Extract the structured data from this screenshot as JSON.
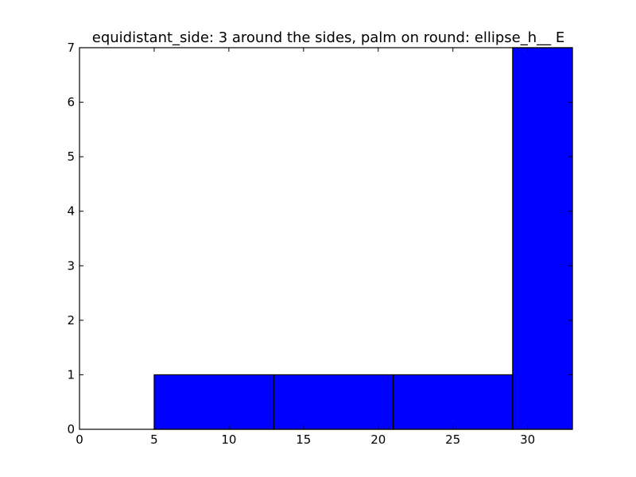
{
  "chart_data": {
    "type": "bar",
    "title": "equidistant_side: 3 around the sides, palm on round: ellipse_h__ E",
    "xlabel": "",
    "ylabel": "",
    "xlim": [
      0,
      33
    ],
    "ylim": [
      0,
      7
    ],
    "bins": [
      {
        "x0": 0,
        "x1": 5,
        "value": 0
      },
      {
        "x0": 5,
        "x1": 13,
        "value": 1
      },
      {
        "x0": 13,
        "x1": 21,
        "value": 1
      },
      {
        "x0": 21,
        "x1": 29,
        "value": 1
      },
      {
        "x0": 29,
        "x1": 33,
        "value": 7
      }
    ],
    "bar_color": "#0000ff",
    "edge_color": "#000000",
    "xticks": [
      0,
      5,
      10,
      15,
      20,
      25,
      30
    ],
    "yticks": [
      0,
      1,
      2,
      3,
      4,
      5,
      6,
      7
    ],
    "grid": false,
    "legend": "none"
  }
}
